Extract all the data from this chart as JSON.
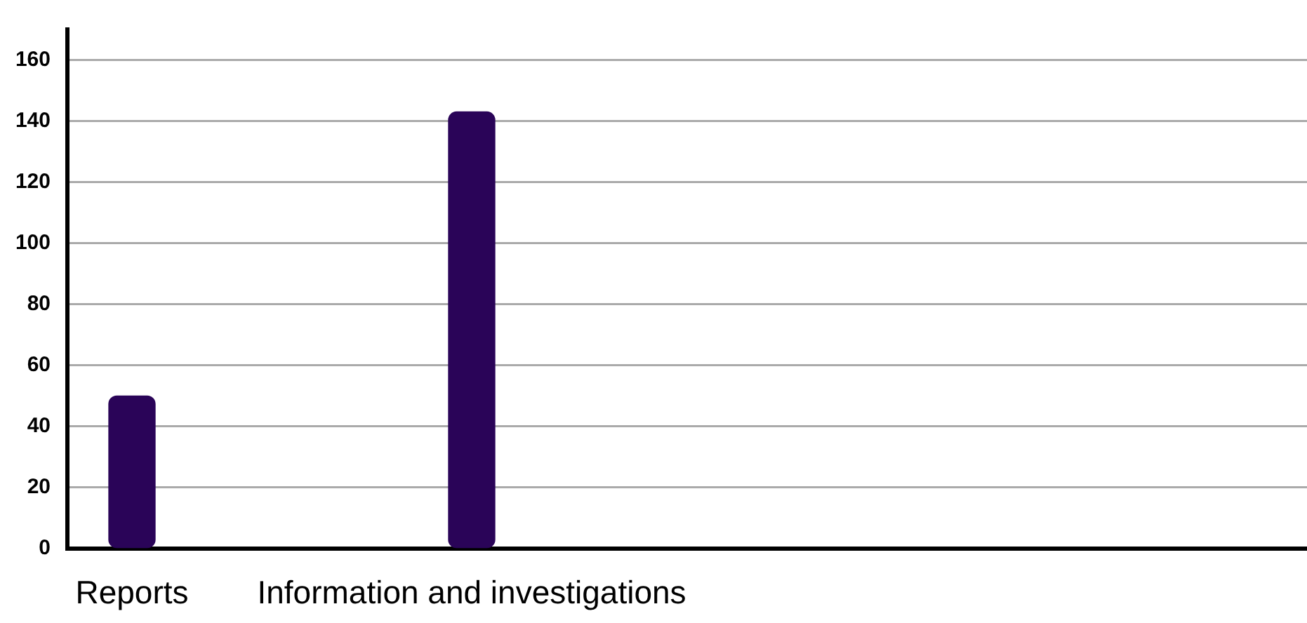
{
  "chart_data": {
    "type": "bar",
    "categories": [
      "Reports",
      "Information and investigations"
    ],
    "values": [
      50,
      143
    ],
    "color": "#2a0458",
    "ylim": [
      0,
      170
    ],
    "yticks": [
      0,
      20,
      40,
      60,
      80,
      100,
      120,
      140,
      160
    ],
    "grid": "y"
  }
}
